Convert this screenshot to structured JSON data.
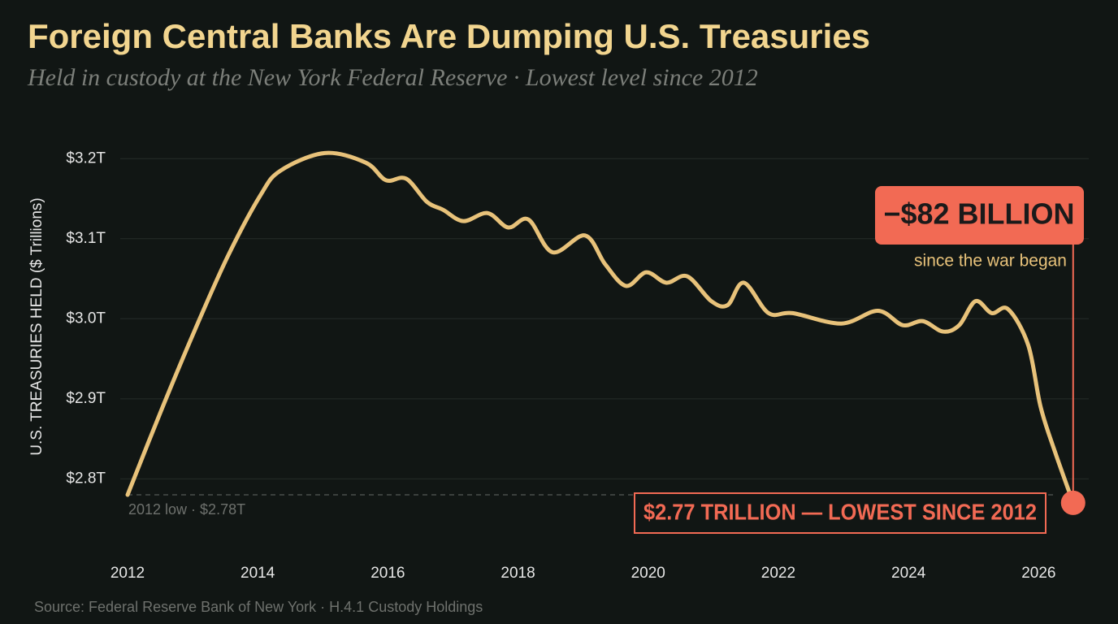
{
  "chart_data": {
    "type": "line",
    "title": "Foreign Central Banks Are Dumping U.S. Treasuries",
    "subtitle": "Held in custody at the New York Federal Reserve · Lowest level since 2012",
    "y_label": "U.S. TREASURIES HELD ($ Trillions)",
    "source": "Source: Federal Reserve Bank of New York · H.4.1 Custody Holdings",
    "x": [
      2012.0,
      2012.54,
      2013.04,
      2013.54,
      2014.04,
      2014.35,
      2015.03,
      2015.66,
      2015.97,
      2016.28,
      2016.6,
      2016.85,
      2017.16,
      2017.53,
      2017.85,
      2018.16,
      2018.53,
      2019.03,
      2019.34,
      2019.66,
      2019.97,
      2020.28,
      2020.6,
      2020.97,
      2021.22,
      2021.47,
      2021.85,
      2022.22,
      2022.97,
      2023.53,
      2023.91,
      2024.22,
      2024.53,
      2024.78,
      2025.03,
      2025.28,
      2025.53,
      2025.84,
      2026.03,
      2026.25,
      2026.53
    ],
    "series": [
      {
        "name": "Treasuries held",
        "color": "#e8c27a",
        "values": [
          2.78,
          2.89,
          2.987,
          3.078,
          3.154,
          3.185,
          3.207,
          3.195,
          3.173,
          3.175,
          3.146,
          3.136,
          3.122,
          3.132,
          3.114,
          3.124,
          3.083,
          3.104,
          3.068,
          3.041,
          3.058,
          3.045,
          3.053,
          3.022,
          3.017,
          3.045,
          3.007,
          3.007,
          2.994,
          3.01,
          2.992,
          2.997,
          2.984,
          2.992,
          3.022,
          3.007,
          3.012,
          2.967,
          2.89,
          2.834,
          2.77
        ]
      }
    ],
    "xlim": [
      2012,
      2026.72
    ],
    "ylim": [
      2.71,
      3.25
    ],
    "xticks": [
      2012,
      2014,
      2016,
      2018,
      2020,
      2022,
      2024,
      2026
    ],
    "yticks": [
      {
        "value": 2.8,
        "label": "$2.8T"
      },
      {
        "value": 2.9,
        "label": "$2.9T"
      },
      {
        "value": 3.0,
        "label": "$3.0T"
      },
      {
        "value": 3.1,
        "label": "$3.1T"
      },
      {
        "value": 3.2,
        "label": "$3.2T"
      }
    ],
    "grid": true,
    "reference_line": {
      "value": 2.78,
      "label": "2012 low · $2.78T"
    },
    "callout": {
      "value": -82,
      "label": "−$82 BILLION",
      "note": "since the war began"
    },
    "end_label": "$2.77 TRILLION — LOWEST SINCE 2012",
    "accent_color": "#f26a54"
  }
}
